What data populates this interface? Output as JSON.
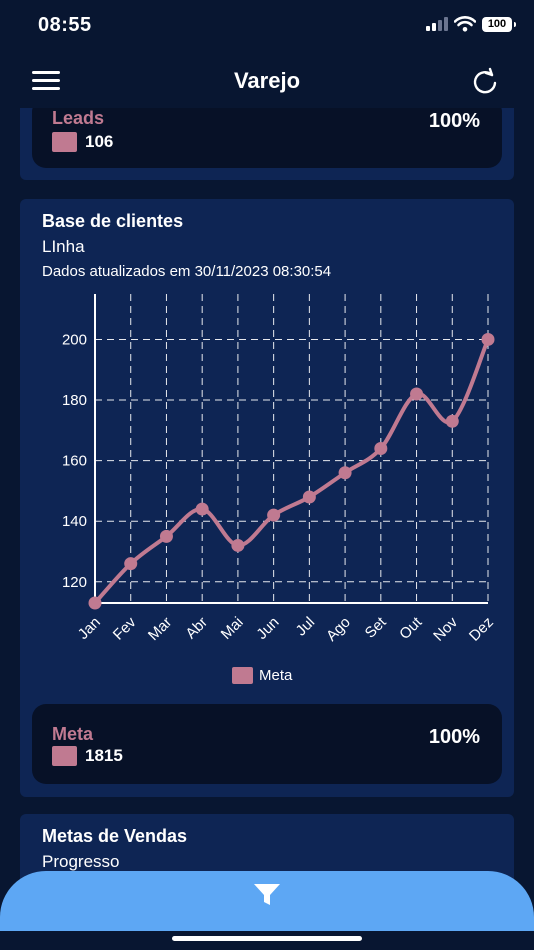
{
  "status": {
    "time": "08:55",
    "battery": "100"
  },
  "header": {
    "title": "Varejo",
    "menu_icon": "hamburger-icon",
    "refresh_icon": "refresh-icon"
  },
  "leads_card": {
    "label": "Leads",
    "value": "106",
    "percent": "100%",
    "color": "#c07a91"
  },
  "clientes_card": {
    "title": "Base de clientes",
    "subtitle": "LInha",
    "updated": "Dados atualizados em 30/11/2023 08:30:54",
    "legend": "Meta",
    "summary": {
      "label": "Meta",
      "value": "1815",
      "percent": "100%"
    }
  },
  "chart_data": {
    "type": "line",
    "categories": [
      "Jan",
      "Fev",
      "Mar",
      "Abr",
      "Mai",
      "Jun",
      "Jul",
      "Ago",
      "Set",
      "Out",
      "Nov",
      "Dez"
    ],
    "series": [
      {
        "name": "Meta",
        "values": [
          113,
          126,
          135,
          144,
          132,
          142,
          148,
          156,
          164,
          182,
          173,
          200
        ],
        "color": "#c07a91"
      }
    ],
    "yticks": [
      120,
      140,
      160,
      180,
      200
    ],
    "ylim": [
      113,
      215
    ],
    "grid": true,
    "grid_style": "dashed",
    "legend_position": "bottom"
  },
  "vendas_card": {
    "title": "Metas de Vendas",
    "subtitle": "Progresso"
  },
  "footer": {
    "filter_icon": "filter-icon"
  },
  "colors": {
    "background": "#081631",
    "card": "#0e2554",
    "stat_box": "#071127",
    "accent": "#c07a91",
    "filter_bar": "#5da7f4"
  }
}
